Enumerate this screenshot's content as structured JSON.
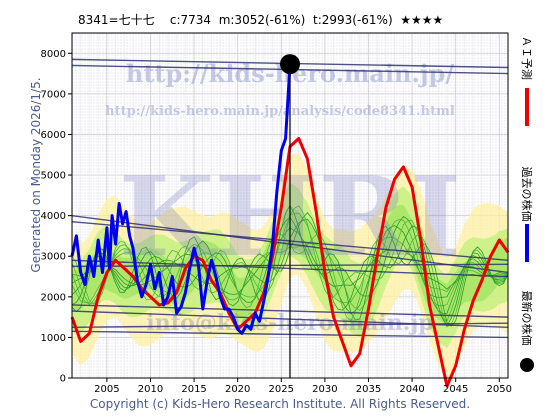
{
  "header": {
    "code": "8341=七十七",
    "current": "c:7734",
    "m_value": "m:3052(-61%)",
    "t_value": "t:2993(-61%)",
    "rating": "★★★★"
  },
  "generated_label": "Generated on Monday 2026/1/5.",
  "footer": "Copyright (c) Kids-Hero Research Institute. All Rights Reserved.",
  "watermarks": {
    "url": "http://kids-hero.main.jp/",
    "analysis_url": "http://kids-hero.main.jp/analysis/code8341.html",
    "logo": "KHRI",
    "email": "info@kids-hero.main.jp"
  },
  "legend": {
    "ai_forecast": "ＡＩ予測",
    "past_price": "過去の株価",
    "latest_price": "最新の株価",
    "ai_color": "#ee0000",
    "past_color": "#0000ee",
    "latest_color": "#000000"
  },
  "chart_data": {
    "type": "line",
    "xlim": [
      2001,
      2051
    ],
    "ylim": [
      0,
      8500
    ],
    "x_ticks": [
      2005,
      2010,
      2015,
      2020,
      2025,
      2030,
      2035,
      2040,
      2045,
      2050
    ],
    "y_ticks": [
      0,
      1000,
      2000,
      3000,
      4000,
      5000,
      6000,
      7000,
      8000
    ],
    "grid": true,
    "current_marker": {
      "x": 2026.0,
      "y": 7734
    },
    "series": [
      {
        "name": "過去の株価",
        "color": "#0000ee",
        "points": [
          [
            2001.0,
            3000
          ],
          [
            2001.5,
            3500
          ],
          [
            2002.0,
            2600
          ],
          [
            2002.5,
            2300
          ],
          [
            2003.0,
            3000
          ],
          [
            2003.5,
            2500
          ],
          [
            2004.0,
            3400
          ],
          [
            2004.5,
            2600
          ],
          [
            2005.0,
            3700
          ],
          [
            2005.3,
            2700
          ],
          [
            2005.6,
            4000
          ],
          [
            2006.0,
            3300
          ],
          [
            2006.4,
            4300
          ],
          [
            2006.8,
            3800
          ],
          [
            2007.2,
            4100
          ],
          [
            2007.6,
            3500
          ],
          [
            2008.0,
            3200
          ],
          [
            2008.5,
            2400
          ],
          [
            2009.0,
            2000
          ],
          [
            2009.5,
            2300
          ],
          [
            2010.0,
            2800
          ],
          [
            2010.5,
            2200
          ],
          [
            2011.0,
            2600
          ],
          [
            2011.5,
            1800
          ],
          [
            2012.0,
            2000
          ],
          [
            2012.5,
            2500
          ],
          [
            2013.0,
            1600
          ],
          [
            2013.5,
            1750
          ],
          [
            2014.0,
            2100
          ],
          [
            2014.5,
            2700
          ],
          [
            2015.0,
            3200
          ],
          [
            2015.5,
            2800
          ],
          [
            2016.0,
            1700
          ],
          [
            2016.5,
            2400
          ],
          [
            2017.0,
            2900
          ],
          [
            2017.5,
            2500
          ],
          [
            2018.0,
            2000
          ],
          [
            2018.5,
            1700
          ],
          [
            2019.0,
            1700
          ],
          [
            2019.5,
            1500
          ],
          [
            2020.0,
            1200
          ],
          [
            2020.5,
            1100
          ],
          [
            2021.0,
            1300
          ],
          [
            2021.5,
            1200
          ],
          [
            2022.0,
            1600
          ],
          [
            2022.5,
            1400
          ],
          [
            2023.0,
            1900
          ],
          [
            2023.5,
            2500
          ],
          [
            2024.0,
            3300
          ],
          [
            2024.5,
            4600
          ],
          [
            2025.0,
            5600
          ],
          [
            2025.5,
            5900
          ],
          [
            2026.0,
            7734
          ]
        ]
      },
      {
        "name": "ＡＩ予測",
        "color": "#ee0000",
        "points": [
          [
            2001.0,
            1500
          ],
          [
            2002.0,
            900
          ],
          [
            2003.0,
            1100
          ],
          [
            2004.0,
            2000
          ],
          [
            2005.0,
            2600
          ],
          [
            2006.0,
            2900
          ],
          [
            2007.0,
            2700
          ],
          [
            2008.0,
            2500
          ],
          [
            2009.0,
            2200
          ],
          [
            2010.0,
            2000
          ],
          [
            2011.0,
            1800
          ],
          [
            2012.0,
            1850
          ],
          [
            2013.0,
            2100
          ],
          [
            2014.0,
            2700
          ],
          [
            2015.0,
            3000
          ],
          [
            2016.0,
            2900
          ],
          [
            2017.0,
            2400
          ],
          [
            2018.0,
            2100
          ],
          [
            2019.0,
            1600
          ],
          [
            2020.0,
            1200
          ],
          [
            2021.0,
            1400
          ],
          [
            2022.0,
            1600
          ],
          [
            2023.0,
            2100
          ],
          [
            2024.0,
            3000
          ],
          [
            2025.0,
            4200
          ],
          [
            2026.0,
            5700
          ],
          [
            2027.0,
            5900
          ],
          [
            2028.0,
            5400
          ],
          [
            2029.0,
            4100
          ],
          [
            2030.0,
            2600
          ],
          [
            2031.0,
            1500
          ],
          [
            2032.0,
            900
          ],
          [
            2033.0,
            300
          ],
          [
            2034.0,
            600
          ],
          [
            2035.0,
            1700
          ],
          [
            2036.0,
            3000
          ],
          [
            2037.0,
            4200
          ],
          [
            2038.0,
            4900
          ],
          [
            2039.0,
            5200
          ],
          [
            2040.0,
            4700
          ],
          [
            2041.0,
            3400
          ],
          [
            2042.0,
            1800
          ],
          [
            2043.0,
            800
          ],
          [
            2044.0,
            -200
          ],
          [
            2045.0,
            300
          ],
          [
            2046.0,
            1200
          ],
          [
            2047.0,
            1900
          ],
          [
            2048.0,
            2400
          ],
          [
            2049.0,
            3000
          ],
          [
            2050.0,
            3400
          ],
          [
            2051.0,
            3100
          ]
        ]
      }
    ]
  }
}
